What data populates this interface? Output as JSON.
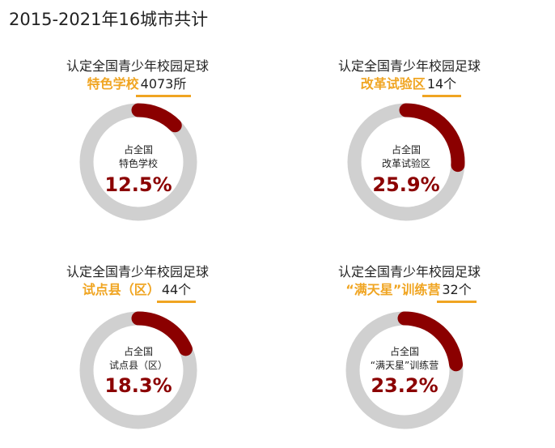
{
  "page": {
    "title": "2015-2021年16城市共计"
  },
  "chart_data": [
    {
      "type": "pie",
      "heading_line1": "认定全国青少年校园足球",
      "category": "特色学校",
      "count": "4073所",
      "center_line1": "占全国",
      "center_line2": "特色学校",
      "percent_label": "12.5%",
      "value": 12.5
    },
    {
      "type": "pie",
      "heading_line1": "认定全国青少年校园足球",
      "category": "改革试验区",
      "count": "14个",
      "center_line1": "占全国",
      "center_line2": "改革试验区",
      "percent_label": "25.9%",
      "value": 25.9
    },
    {
      "type": "pie",
      "heading_line1": "认定全国青少年校园足球",
      "category": "试点县（区）",
      "count": "44个",
      "center_line1": "占全国",
      "center_line2": "试点县（区）",
      "percent_label": "18.3%",
      "value": 18.3
    },
    {
      "type": "pie",
      "heading_line1": "认定全国青少年校园足球",
      "category": "“满天星”训练营",
      "count": "32个",
      "center_line1": "占全国",
      "center_line2": "“满天星”训练营",
      "percent_label": "23.2%",
      "value": 23.2
    }
  ],
  "colors": {
    "share": "#8b0000",
    "remainder": "#d0d0d0",
    "highlight": "#f0a522"
  }
}
